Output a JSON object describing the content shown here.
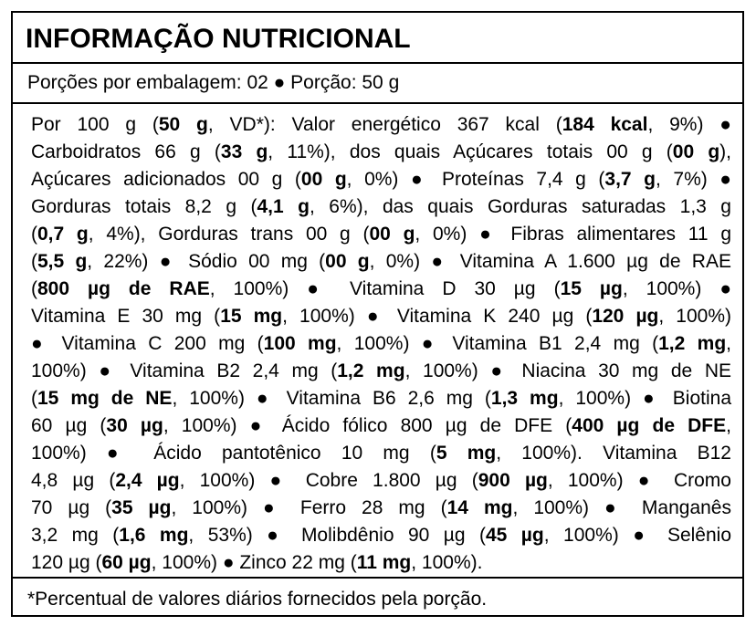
{
  "header": {
    "title": "INFORMAÇÃO NUTRICIONAL"
  },
  "servings": "Porções por embalagem: 02 ● Porção: 50 g",
  "body": {
    "lines": [
      [
        {
          "text": "Por 100 g ("
        },
        {
          "text": "50 g",
          "bold": true
        },
        {
          "text": ", VD*): Valor energético 367 kcal ("
        },
        {
          "text": "184 kcal",
          "bold": true
        },
        {
          "text": ", 9%) ●"
        }
      ],
      [
        {
          "text": "Carboidratos 66 g ("
        },
        {
          "text": "33 g",
          "bold": true
        },
        {
          "text": ", 11%), dos quais Açúcares totais 00 g ("
        },
        {
          "text": "00 g",
          "bold": true
        },
        {
          "text": "),"
        }
      ],
      [
        {
          "text": "Açúcares adicionados 00 g ("
        },
        {
          "text": "00 g",
          "bold": true
        },
        {
          "text": ", 0%) ● Proteínas 7,4 g ("
        },
        {
          "text": "3,7 g",
          "bold": true
        },
        {
          "text": ", 7%) ●"
        }
      ],
      [
        {
          "text": "Gorduras totais 8,2 g ("
        },
        {
          "text": "4,1 g",
          "bold": true
        },
        {
          "text": ", 6%), das quais Gorduras saturadas 1,3 g"
        }
      ],
      [
        {
          "text": "("
        },
        {
          "text": "0,7 g",
          "bold": true
        },
        {
          "text": ", 4%), Gorduras trans 00 g ("
        },
        {
          "text": "00 g",
          "bold": true
        },
        {
          "text": ", 0%) ● Fibras alimentares 11 g"
        }
      ],
      [
        {
          "text": "("
        },
        {
          "text": "5,5 g",
          "bold": true
        },
        {
          "text": ", 22%) ● Sódio 00 mg ("
        },
        {
          "text": "00 g",
          "bold": true
        },
        {
          "text": ", 0%) ● Vitamina A 1.600 µg de RAE"
        }
      ],
      [
        {
          "text": "("
        },
        {
          "text": "800 µg de RAE",
          "bold": true
        },
        {
          "text": ", 100%) ● Vitamina D 30 µg ("
        },
        {
          "text": "15 µg",
          "bold": true
        },
        {
          "text": ", 100%) ●"
        }
      ],
      [
        {
          "text": "Vitamina E 30 mg ("
        },
        {
          "text": "15 mg",
          "bold": true
        },
        {
          "text": ", 100%) ● Vitamina K 240 µg ("
        },
        {
          "text": "120 µg",
          "bold": true
        },
        {
          "text": ", 100%)"
        }
      ],
      [
        {
          "text": "● Vitamina C 200 mg ("
        },
        {
          "text": "100 mg",
          "bold": true
        },
        {
          "text": ", 100%) ● Vitamina B1 2,4 mg ("
        },
        {
          "text": "1,2 mg",
          "bold": true
        },
        {
          "text": ","
        }
      ],
      [
        {
          "text": "100%) ● Vitamina B2 2,4 mg ("
        },
        {
          "text": "1,2 mg",
          "bold": true
        },
        {
          "text": ", 100%) ● Niacina 30 mg de NE"
        }
      ],
      [
        {
          "text": "("
        },
        {
          "text": "15 mg de NE",
          "bold": true
        },
        {
          "text": ", 100%) ● Vitamina B6 2,6 mg ("
        },
        {
          "text": "1,3 mg",
          "bold": true
        },
        {
          "text": ", 100%) ● Biotina"
        }
      ],
      [
        {
          "text": "60 µg ("
        },
        {
          "text": "30 µg",
          "bold": true
        },
        {
          "text": ", 100%) ● Ácido fólico 800 µg de DFE ("
        },
        {
          "text": "400 µg de DFE",
          "bold": true
        },
        {
          "text": ","
        }
      ],
      [
        {
          "text": "100%) ● Ácido pantotênico 10 mg ("
        },
        {
          "text": "5 mg",
          "bold": true
        },
        {
          "text": ", 100%). Vitamina B12"
        }
      ],
      [
        {
          "text": "4,8 µg ("
        },
        {
          "text": "2,4 µg",
          "bold": true
        },
        {
          "text": ", 100%) ● Cobre 1.800 µg ("
        },
        {
          "text": "900 µg",
          "bold": true
        },
        {
          "text": ", 100%) ● Cromo"
        }
      ],
      [
        {
          "text": "70 µg ("
        },
        {
          "text": "35 µg",
          "bold": true
        },
        {
          "text": ", 100%) ● Ferro 28 mg ("
        },
        {
          "text": "14 mg",
          "bold": true
        },
        {
          "text": ", 100%) ● Manganês"
        }
      ],
      [
        {
          "text": "3,2 mg ("
        },
        {
          "text": "1,6 mg",
          "bold": true
        },
        {
          "text": ", 53%) ● Molibdênio 90 µg ("
        },
        {
          "text": "45 µg",
          "bold": true
        },
        {
          "text": ", 100%) ● Selênio"
        }
      ],
      [
        {
          "text": "120 µg ("
        },
        {
          "text": "60 µg",
          "bold": true
        },
        {
          "text": ", 100%) ● Zinco 22 mg ("
        },
        {
          "text": "11 mg",
          "bold": true
        },
        {
          "text": ", 100%)."
        }
      ]
    ]
  },
  "footer": "*Percentual de valores diários fornecidos pela porção."
}
